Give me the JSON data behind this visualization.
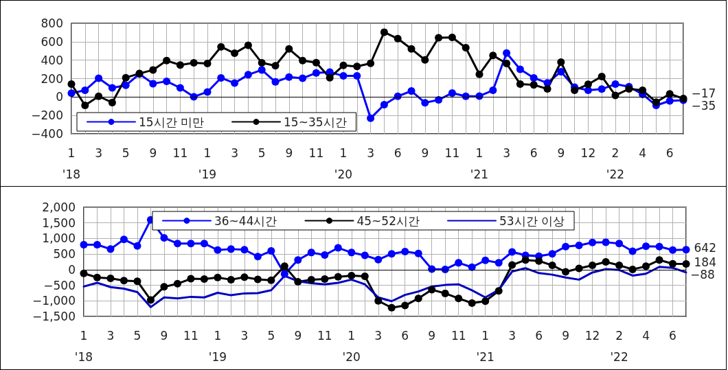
{
  "chart_data": [
    {
      "type": "line",
      "categories": [
        "1\n'18",
        null,
        "3",
        null,
        "5",
        null,
        "9",
        null,
        "11",
        null,
        "1\n'19",
        null,
        "3",
        null,
        "5",
        null,
        "9",
        null,
        "11",
        null,
        "1\n'20",
        null,
        "3",
        null,
        "6",
        null,
        "9",
        null,
        "11",
        null,
        "1\n'21",
        null,
        "3",
        null,
        "6",
        null,
        "9",
        null,
        "12",
        null,
        "2\n'22",
        null,
        "4",
        null,
        "6",
        null
      ],
      "series": [
        {
          "name": "15시간 미만",
          "color": "#0000ff",
          "marker": "circle",
          "values": [
            42,
            73,
            203,
            99,
            127,
            250,
            145,
            171,
            99,
            3,
            55,
            208,
            151,
            242,
            294,
            164,
            216,
            203,
            262,
            270,
            229,
            229,
            -231,
            -83,
            8,
            65,
            -62,
            -31,
            44,
            8,
            10,
            73,
            478,
            301,
            208,
            153,
            275,
            106,
            73,
            86,
            140,
            112,
            29,
            -91,
            -42,
            -35
          ],
          "value_labels": [
            null,
            null,
            null,
            null,
            null,
            null,
            null,
            null,
            null,
            null,
            null,
            null,
            null,
            null,
            null,
            null,
            null,
            null,
            null,
            null,
            null,
            null,
            null,
            null,
            null,
            null,
            null,
            null,
            null,
            null,
            null,
            null,
            null,
            null,
            null,
            null,
            null,
            null,
            null,
            null,
            null,
            null,
            null,
            null,
            null,
            "−35"
          ]
        },
        {
          "name": "15~35시간",
          "color": "#000000",
          "marker": "circle",
          "values": [
            140,
            -91,
            8,
            -60,
            210,
            255,
            294,
            395,
            348,
            371,
            364,
            545,
            475,
            561,
            371,
            340,
            522,
            395,
            374,
            210,
            343,
            332,
            366,
            704,
            634,
            522,
            403,
            644,
            647,
            535,
            247,
            452,
            364,
            140,
            132,
            88,
            379,
            73,
            138,
            223,
            18,
            88,
            73,
            -55,
            34,
            -17
          ],
          "value_labels": [
            null,
            null,
            null,
            null,
            null,
            null,
            null,
            null,
            null,
            null,
            null,
            null,
            null,
            null,
            null,
            null,
            null,
            null,
            null,
            null,
            null,
            null,
            null,
            null,
            null,
            null,
            null,
            null,
            null,
            null,
            null,
            null,
            null,
            null,
            null,
            null,
            null,
            null,
            null,
            null,
            null,
            null,
            null,
            null,
            null,
            "−17"
          ]
        }
      ],
      "ylim": [
        -400,
        800
      ],
      "yticks": [
        {
          "value": -400,
          "label": "−400"
        },
        {
          "value": -200,
          "label": "−200"
        },
        0,
        200,
        400,
        600,
        800
      ],
      "grid": true,
      "legend": "bottom left",
      "line_style": "solid"
    },
    {
      "type": "line",
      "categories": [
        "1\n'18",
        null,
        "3",
        null,
        "5",
        null,
        "9",
        null,
        "11",
        null,
        "1\n'19",
        null,
        "3",
        null,
        "5",
        null,
        "9",
        null,
        "11",
        null,
        "1\n'20",
        null,
        "3",
        null,
        "6",
        null,
        "9",
        null,
        "11",
        null,
        "1\n'21",
        null,
        "3",
        null,
        "6",
        null,
        "9",
        null,
        "12",
        null,
        "2\n'22",
        null,
        "4",
        null,
        "6",
        null
      ],
      "series": [
        {
          "name": "36~44시간",
          "color": "#0000ff",
          "marker": "circle",
          "values": [
            800,
            800,
            660,
            970,
            760,
            1600,
            1020,
            840,
            840,
            840,
            630,
            660,
            640,
            420,
            600,
            -140,
            310,
            550,
            470,
            700,
            550,
            460,
            320,
            510,
            580,
            520,
            20,
            10,
            220,
            80,
            300,
            220,
            570,
            460,
            430,
            510,
            740,
            780,
            870,
            880,
            840,
            590,
            750,
            740,
            630,
            642
          ],
          "value_labels": [
            null,
            null,
            null,
            null,
            null,
            null,
            null,
            null,
            null,
            null,
            null,
            null,
            null,
            null,
            null,
            null,
            null,
            null,
            null,
            null,
            null,
            null,
            null,
            null,
            null,
            null,
            null,
            null,
            null,
            null,
            null,
            null,
            null,
            null,
            null,
            null,
            null,
            null,
            null,
            null,
            null,
            null,
            null,
            null,
            null,
            "642"
          ]
        },
        {
          "name": "45~52시간",
          "color": "#000000",
          "marker": "circle",
          "values": [
            -120,
            -250,
            -280,
            -350,
            -370,
            -970,
            -550,
            -450,
            -290,
            -300,
            -250,
            -320,
            -240,
            -310,
            -340,
            110,
            -390,
            -320,
            -300,
            -230,
            -190,
            -210,
            -1000,
            -1220,
            -1150,
            -920,
            -640,
            -760,
            -920,
            -1070,
            -1010,
            -680,
            150,
            310,
            280,
            140,
            -70,
            40,
            140,
            250,
            140,
            10,
            110,
            310,
            190,
            184
          ],
          "value_labels": [
            null,
            null,
            null,
            null,
            null,
            null,
            null,
            null,
            null,
            null,
            null,
            null,
            null,
            null,
            null,
            null,
            null,
            null,
            null,
            null,
            null,
            null,
            null,
            null,
            null,
            null,
            null,
            null,
            null,
            null,
            null,
            null,
            null,
            null,
            null,
            null,
            null,
            null,
            null,
            null,
            null,
            null,
            null,
            null,
            null,
            "184"
          ]
        },
        {
          "name": "53시간 이상",
          "color": "#0000c0",
          "marker": "none",
          "values": [
            -540,
            -420,
            -560,
            -610,
            -720,
            -1200,
            -890,
            -920,
            -870,
            -890,
            -740,
            -820,
            -760,
            -750,
            -660,
            -200,
            -370,
            -430,
            -470,
            -420,
            -320,
            -470,
            -890,
            -1010,
            -810,
            -700,
            -540,
            -490,
            -470,
            -660,
            -890,
            -650,
            -60,
            50,
            -110,
            -160,
            -250,
            -320,
            -90,
            20,
            -10,
            -190,
            -130,
            90,
            60,
            -88
          ],
          "value_labels": [
            null,
            null,
            null,
            null,
            null,
            null,
            null,
            null,
            null,
            null,
            null,
            null,
            null,
            null,
            null,
            null,
            null,
            null,
            null,
            null,
            null,
            null,
            null,
            null,
            null,
            null,
            null,
            null,
            null,
            null,
            null,
            null,
            null,
            null,
            null,
            null,
            null,
            null,
            null,
            null,
            null,
            null,
            null,
            null,
            null,
            "−88"
          ]
        }
      ],
      "ylim": [
        -1500,
        2000
      ],
      "yticks": [
        {
          "value": -1500,
          "label": "−1,500"
        },
        {
          "value": -1000,
          "label": "−1,000"
        },
        {
          "value": -500,
          "label": "−500"
        },
        0,
        500,
        {
          "value": 1000,
          "label": "1,000"
        },
        {
          "value": 1500,
          "label": "1,500"
        },
        {
          "value": 2000,
          "label": "2,000"
        }
      ],
      "grid": true,
      "legend": "top",
      "line_style": "solid"
    }
  ]
}
